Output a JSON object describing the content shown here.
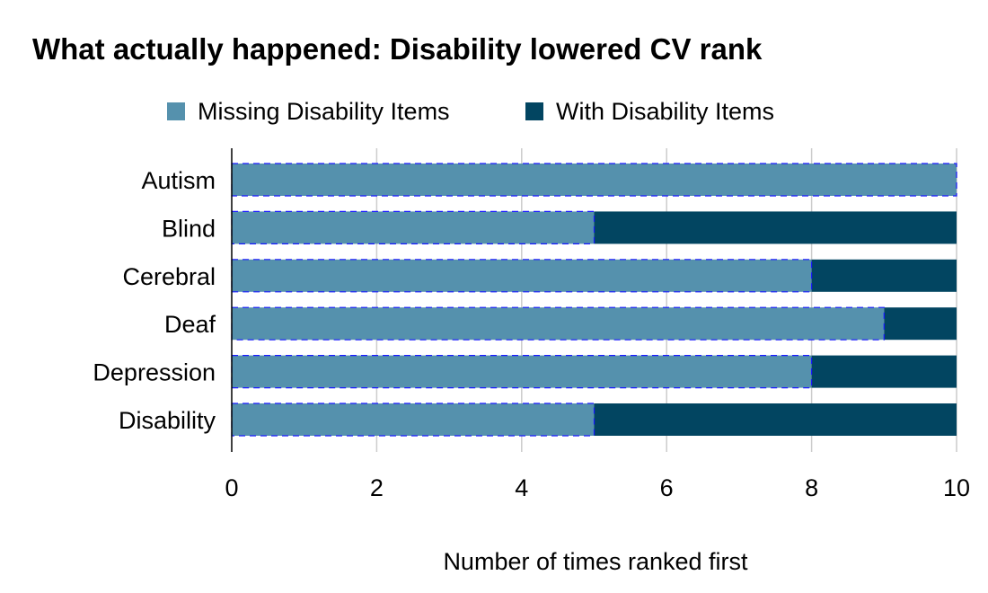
{
  "chart_data": {
    "type": "bar",
    "orientation": "horizontal",
    "stacked": true,
    "title": "What actually happened: Disability lowered CV rank",
    "xlabel": "Number of times ranked first",
    "ylabel": "",
    "categories": [
      "Autism",
      "Blind",
      "Cerebral",
      "Deaf",
      "Depression",
      "Disability"
    ],
    "series": [
      {
        "name": "Missing Disability Items",
        "color": "#5591ad",
        "values": [
          10,
          5,
          8,
          9,
          8,
          5
        ]
      },
      {
        "name": "With Disability Items",
        "color": "#024561",
        "values": [
          0,
          5,
          2,
          1,
          2,
          5
        ]
      }
    ],
    "xlim": [
      0,
      10
    ],
    "xticks": [
      "0",
      "2",
      "4",
      "6",
      "8",
      "10"
    ],
    "grid": true,
    "legend_position": "top"
  }
}
